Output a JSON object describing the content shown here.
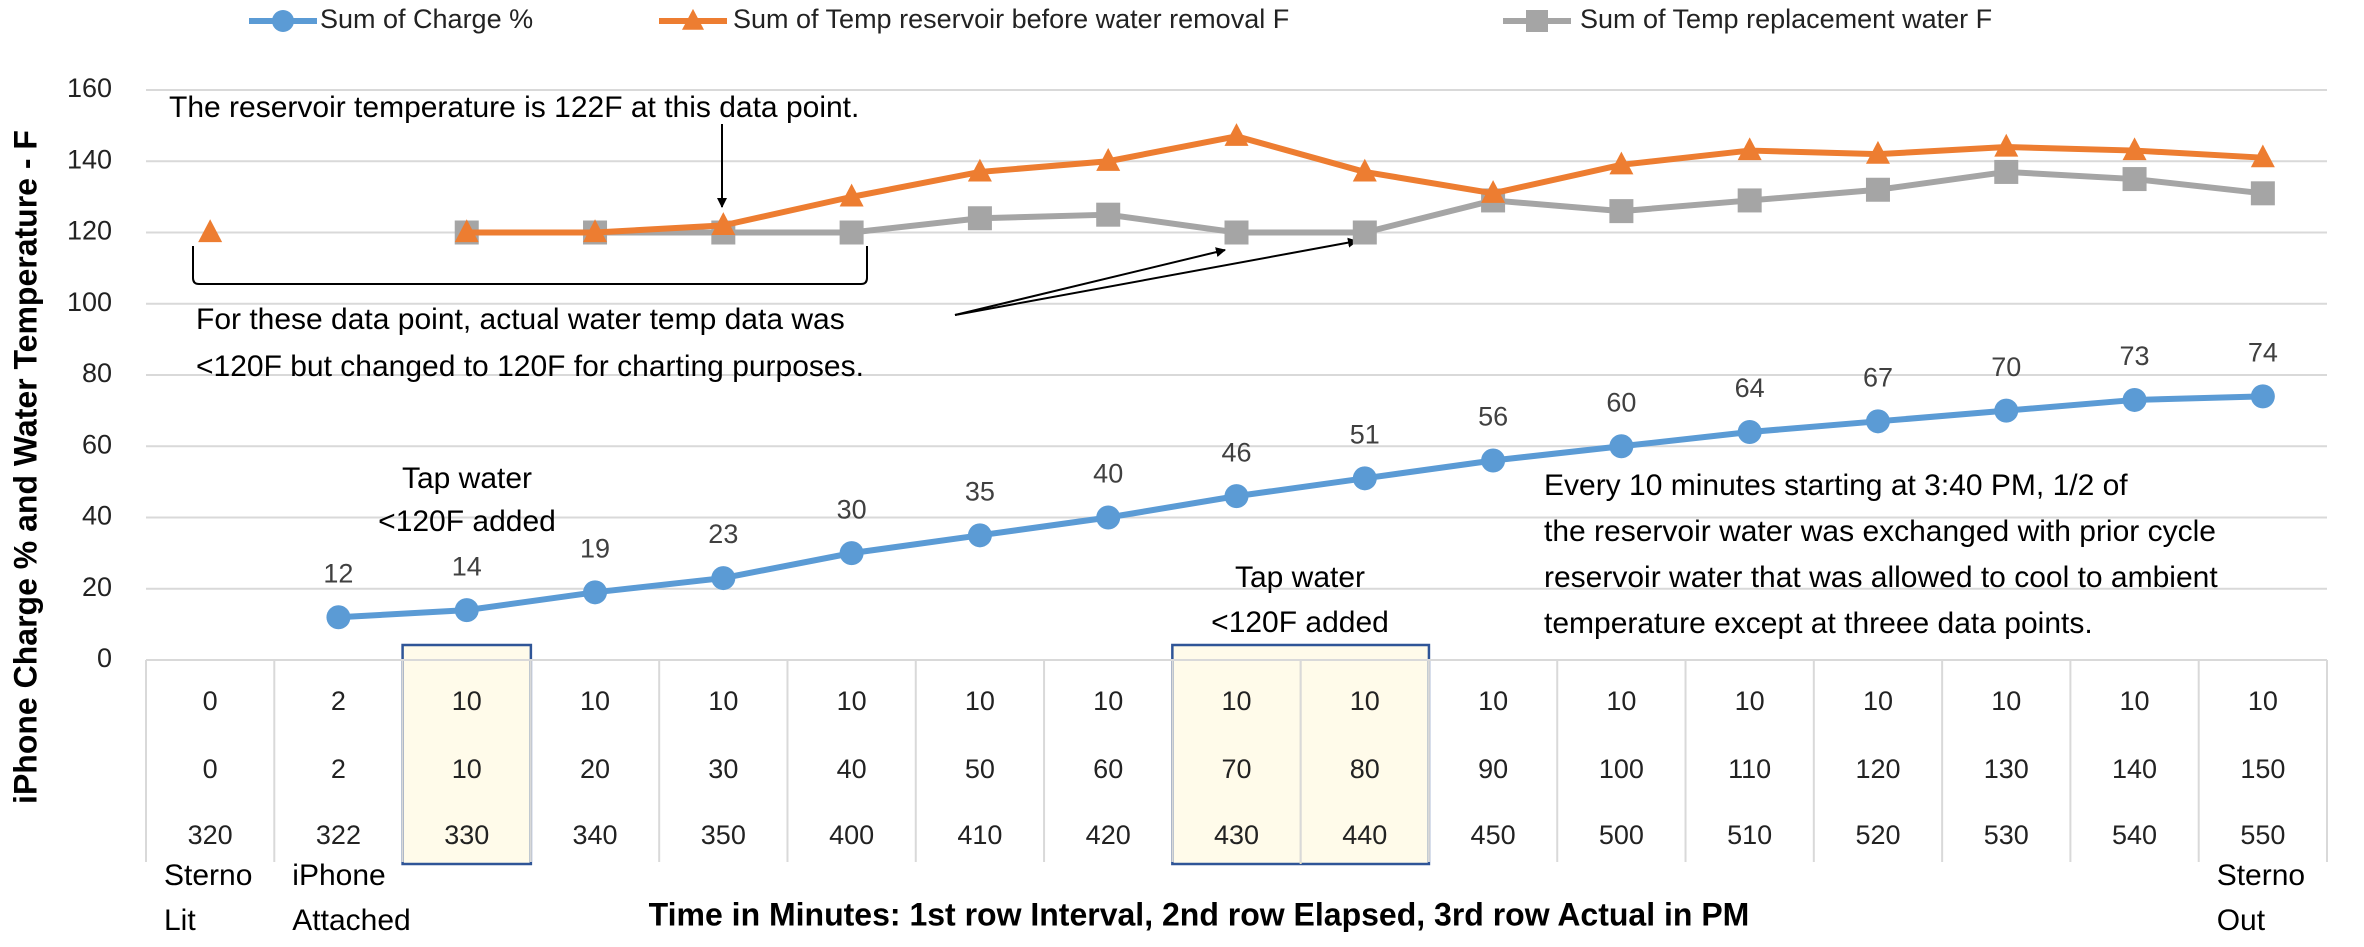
{
  "chart_data": {
    "type": "line",
    "y_axis_label": "iPhone Charge % and Water Temperature - F",
    "x_axis_label": "Time in Minutes: 1st row Interval, 2nd row Elapsed, 3rd row Actual in PM",
    "x_rows": [
      [
        0,
        2,
        10,
        10,
        10,
        10,
        10,
        10,
        10,
        10,
        10,
        10,
        10,
        10,
        10,
        10,
        10
      ],
      [
        0,
        2,
        10,
        20,
        30,
        40,
        50,
        60,
        70,
        80,
        90,
        100,
        110,
        120,
        130,
        140,
        150
      ],
      [
        320,
        322,
        330,
        340,
        350,
        400,
        410,
        420,
        430,
        440,
        450,
        500,
        510,
        520,
        530,
        540,
        550
      ]
    ],
    "x_notes": [
      [
        "Sterno",
        "Lit"
      ],
      [
        "iPhone",
        "Attached"
      ],
      null,
      null,
      null,
      null,
      null,
      null,
      null,
      null,
      null,
      null,
      null,
      null,
      null,
      null,
      [
        "Sterno",
        "Out"
      ]
    ],
    "series": [
      {
        "name": "Sum of Charge %",
        "color": "#5b9bd5",
        "marker": "circle",
        "data_labels": true,
        "values": [
          null,
          12,
          14,
          19,
          23,
          30,
          35,
          40,
          46,
          51,
          56,
          60,
          64,
          67,
          70,
          73,
          74
        ]
      },
      {
        "name": "Sum of Temp reservoir before water removal F",
        "color": "#ed7d31",
        "marker": "triangle",
        "values": [
          120,
          null,
          120,
          120,
          122,
          130,
          137,
          140,
          147,
          137,
          131,
          139,
          143,
          142,
          144,
          143,
          141
        ]
      },
      {
        "name": "Sum of Temp replacement water F",
        "color": "#a5a5a5",
        "marker": "square",
        "values": [
          null,
          null,
          120,
          120,
          120,
          120,
          124,
          125,
          120,
          120,
          129,
          126,
          129,
          132,
          137,
          135,
          131
        ]
      }
    ],
    "ylim": [
      0,
      160
    ],
    "yticks": [
      0,
      20,
      40,
      60,
      80,
      100,
      120,
      140,
      160
    ],
    "grid": true,
    "legend": "top",
    "annotations": [
      {
        "lines": [
          "The reservoir temperature is 122F at this data point."
        ]
      },
      {
        "lines": [
          "For these data point, actual water temp data was",
          "<120F but changed to 120F for charting purposes."
        ]
      },
      {
        "lines": [
          "Tap water",
          "<120F added"
        ]
      },
      {
        "lines": [
          "Tap water",
          "<120F added"
        ]
      },
      {
        "lines": [
          "Every 10 minutes starting at 3:40 PM, 1/2 of",
          "the reservoir water was exchanged with prior cycle",
          "reservoir water that was allowed to cool to ambient",
          "temperature except at threee data points."
        ]
      }
    ]
  }
}
